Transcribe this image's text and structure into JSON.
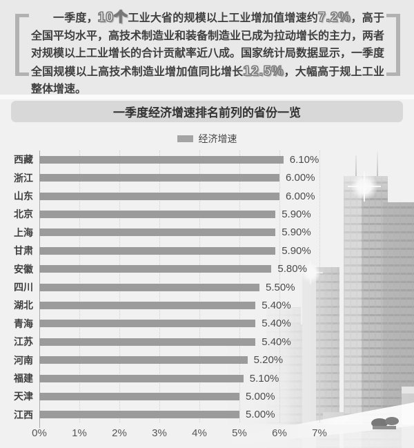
{
  "intro": {
    "segments": [
      {
        "text": "一季度，",
        "hollow": false
      },
      {
        "text": "10个",
        "hollow": true
      },
      {
        "text": "工业大省的规模以上工业增加值增速约",
        "hollow": false
      },
      {
        "text": "7.2%",
        "hollow": true
      },
      {
        "text": "，高于全国平均水平，高技术制造业和装备制造业已成为拉动增长的主力，两者对规模以上工业增长的合计贡献率近八成。国家统计局数据显示，一季度全国规模以上高技术制造业增加值同比增长",
        "hollow": false
      },
      {
        "text": "12.5%",
        "hollow": true
      },
      {
        "text": "，大幅高于规上工业整体增速。",
        "hollow": false
      }
    ]
  },
  "chart": {
    "title": "一季度经济增速排名前列的省份一览",
    "legend_label": "经济增速",
    "bar_color": "#9b9b9b",
    "title_bar_color": "#d8d8d8"
  },
  "chart_data": {
    "type": "bar",
    "orientation": "horizontal",
    "title": "一季度经济增速排名前列的省份一览",
    "legend": [
      "经济增速"
    ],
    "legend_position": "top-center",
    "categories": [
      "西藏",
      "浙江",
      "山东",
      "北京",
      "上海",
      "甘肃",
      "安徽",
      "四川",
      "湖北",
      "青海",
      "江苏",
      "河南",
      "福建",
      "天津",
      "江西"
    ],
    "values": [
      6.1,
      6.0,
      6.0,
      5.9,
      5.9,
      5.9,
      5.8,
      5.5,
      5.4,
      5.4,
      5.4,
      5.2,
      5.1,
      5.0,
      5.0
    ],
    "value_labels": [
      "6.10%",
      "6.00%",
      "6.00%",
      "5.90%",
      "5.90%",
      "5.90%",
      "5.80%",
      "5.50%",
      "5.40%",
      "5.40%",
      "5.40%",
      "5.20%",
      "5.10%",
      "5.00%",
      "5.00%"
    ],
    "x_ticks": [
      "0%",
      "1%",
      "2%",
      "3%",
      "4%",
      "5%",
      "6%",
      "7%"
    ],
    "xlim": [
      0,
      8
    ],
    "grid": "vertical-dotted"
  }
}
